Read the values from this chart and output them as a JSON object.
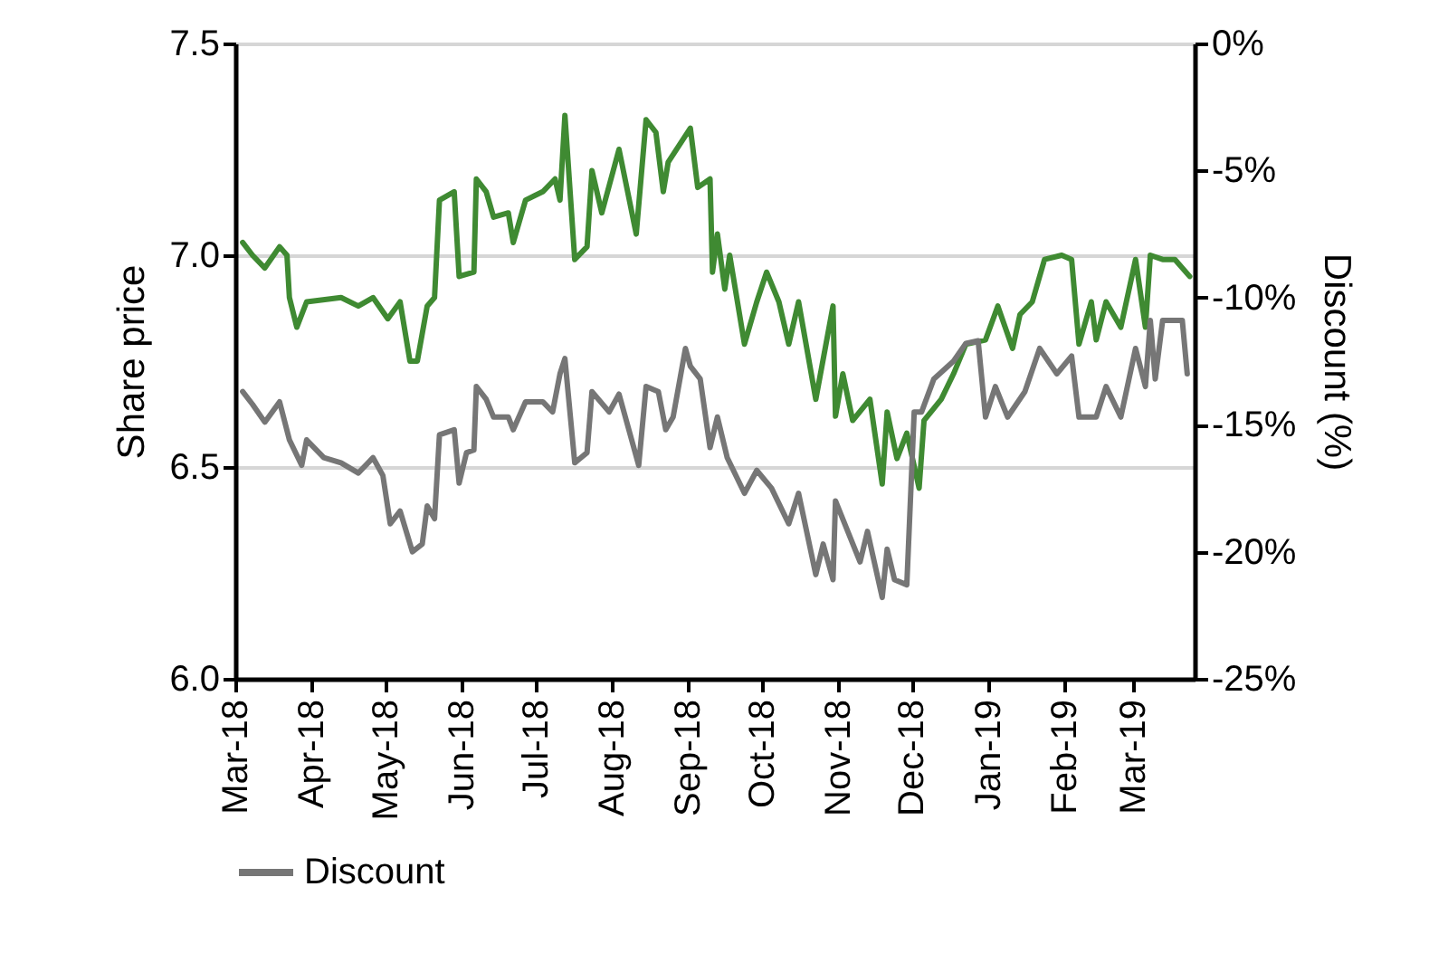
{
  "chart_data": {
    "type": "line",
    "ylabel": "Share price",
    "y2label": "Discount (%)",
    "xlim": [
      "2018-03-01",
      "2019-03-26"
    ],
    "xticks": [
      {
        "value": "2018-03-01",
        "label": "Mar-18"
      },
      {
        "value": "2018-04-01",
        "label": "Apr-18"
      },
      {
        "value": "2018-05-01",
        "label": "May-18"
      },
      {
        "value": "2018-06-01",
        "label": "Jun-18"
      },
      {
        "value": "2018-07-01",
        "label": "Jul-18"
      },
      {
        "value": "2018-08-01",
        "label": "Aug-18"
      },
      {
        "value": "2018-09-01",
        "label": "Sep-18"
      },
      {
        "value": "2018-10-01",
        "label": "Oct-18"
      },
      {
        "value": "2018-11-01",
        "label": "Nov-18"
      },
      {
        "value": "2018-12-01",
        "label": "Dec-18"
      },
      {
        "value": "2019-01-01",
        "label": "Jan-19"
      },
      {
        "value": "2019-02-01",
        "label": "Feb-19"
      },
      {
        "value": "2019-03-01",
        "label": "Mar-19"
      }
    ],
    "ylim": [
      6.0,
      7.5
    ],
    "yticks": [
      {
        "value": 6.0,
        "label": "6.0"
      },
      {
        "value": 6.5,
        "label": "6.5"
      },
      {
        "value": 7.0,
        "label": "7.0"
      },
      {
        "value": 7.5,
        "label": "7.5"
      }
    ],
    "y2lim": [
      -25,
      0
    ],
    "y2ticks": [
      {
        "value": -25,
        "label": "-25%"
      },
      {
        "value": -20,
        "label": "-20%"
      },
      {
        "value": -15,
        "label": "-15%"
      },
      {
        "value": -10,
        "label": "-10%"
      },
      {
        "value": -5,
        "label": "-5%"
      },
      {
        "value": 0,
        "label": "0%"
      }
    ],
    "grid": "y",
    "legend": "bottom",
    "series": [
      {
        "color": "#3f8a32",
        "x": [
          "2018-03-04",
          "2018-03-08",
          "2018-03-13",
          "2018-03-19",
          "2018-03-22",
          "2018-03-23",
          "2018-03-26",
          "2018-03-30",
          "2018-04-13",
          "2018-04-20",
          "2018-04-26",
          "2018-05-02",
          "2018-05-07",
          "2018-05-11",
          "2018-05-14",
          "2018-05-18",
          "2018-05-21",
          "2018-05-23",
          "2018-05-29",
          "2018-05-31",
          "2018-06-06",
          "2018-06-07",
          "2018-06-11",
          "2018-06-14",
          "2018-06-20",
          "2018-06-22",
          "2018-06-27",
          "2018-07-04",
          "2018-07-09",
          "2018-07-11",
          "2018-07-13",
          "2018-07-17",
          "2018-07-22",
          "2018-07-24",
          "2018-07-28",
          "2018-08-04",
          "2018-08-11",
          "2018-08-15",
          "2018-08-19",
          "2018-08-22",
          "2018-08-24",
          "2018-09-02",
          "2018-09-05",
          "2018-09-10",
          "2018-09-11",
          "2018-09-13",
          "2018-09-16",
          "2018-09-18",
          "2018-09-24",
          "2018-09-29",
          "2018-10-03",
          "2018-10-08",
          "2018-10-12",
          "2018-10-16",
          "2018-10-23",
          "2018-10-30",
          "2018-10-31",
          "2018-11-03",
          "2018-11-07",
          "2018-11-14",
          "2018-11-19",
          "2018-11-21",
          "2018-11-25",
          "2018-11-29",
          "2018-12-04",
          "2018-12-06",
          "2018-12-13",
          "2018-12-18",
          "2018-12-23",
          "2018-12-31",
          "2019-01-05",
          "2019-01-11",
          "2019-01-14",
          "2019-01-19",
          "2019-01-24",
          "2019-01-31",
          "2019-02-04",
          "2019-02-07",
          "2019-02-12",
          "2019-02-14",
          "2019-02-18",
          "2019-02-24",
          "2019-03-02",
          "2019-03-06",
          "2019-03-08",
          "2019-03-13",
          "2019-03-18",
          "2019-03-24"
        ],
        "values": [
          7.03,
          7.0,
          6.97,
          7.02,
          7.0,
          6.9,
          6.83,
          6.89,
          6.9,
          6.88,
          6.9,
          6.85,
          6.89,
          6.75,
          6.75,
          6.88,
          6.9,
          7.13,
          7.15,
          6.95,
          6.96,
          7.18,
          7.15,
          7.09,
          7.1,
          7.03,
          7.13,
          7.15,
          7.18,
          7.13,
          7.33,
          6.99,
          7.02,
          7.2,
          7.1,
          7.25,
          7.05,
          7.32,
          7.29,
          7.15,
          7.22,
          7.3,
          7.16,
          7.18,
          6.96,
          7.05,
          6.92,
          7.0,
          6.79,
          6.89,
          6.96,
          6.89,
          6.79,
          6.89,
          6.66,
          6.88,
          6.62,
          6.72,
          6.61,
          6.66,
          6.46,
          6.63,
          6.52,
          6.58,
          6.45,
          6.61,
          6.66,
          6.72,
          6.79,
          6.8,
          6.88,
          6.78,
          6.86,
          6.89,
          6.99,
          7.0,
          6.99,
          6.79,
          6.89,
          6.8,
          6.89,
          6.83,
          6.99,
          6.83,
          7.0,
          6.99,
          6.99,
          6.95
        ]
      },
      {
        "name": "Discount",
        "color": "#767676",
        "axis": "y2",
        "x": [
          "2018-03-04",
          "2018-03-08",
          "2018-03-13",
          "2018-03-19",
          "2018-03-23",
          "2018-03-28",
          "2018-03-30",
          "2018-04-06",
          "2018-04-13",
          "2018-04-20",
          "2018-04-26",
          "2018-04-30",
          "2018-05-03",
          "2018-05-07",
          "2018-05-12",
          "2018-05-16",
          "2018-05-18",
          "2018-05-21",
          "2018-05-23",
          "2018-05-29",
          "2018-05-31",
          "2018-06-03",
          "2018-06-06",
          "2018-06-07",
          "2018-06-11",
          "2018-06-14",
          "2018-06-20",
          "2018-06-22",
          "2018-06-27",
          "2018-07-04",
          "2018-07-08",
          "2018-07-11",
          "2018-07-13",
          "2018-07-17",
          "2018-07-22",
          "2018-07-24",
          "2018-07-31",
          "2018-08-04",
          "2018-08-12",
          "2018-08-15",
          "2018-08-20",
          "2018-08-23",
          "2018-08-26",
          "2018-08-31",
          "2018-09-02",
          "2018-09-06",
          "2018-09-10",
          "2018-09-13",
          "2018-09-17",
          "2018-09-24",
          "2018-09-29",
          "2018-10-05",
          "2018-10-12",
          "2018-10-16",
          "2018-10-23",
          "2018-10-26",
          "2018-10-30",
          "2018-10-31",
          "2018-11-05",
          "2018-11-10",
          "2018-11-13",
          "2018-11-19",
          "2018-11-21",
          "2018-11-24",
          "2018-11-29",
          "2018-12-02",
          "2018-12-05",
          "2018-12-10",
          "2018-12-18",
          "2018-12-23",
          "2018-12-28",
          "2018-12-31",
          "2019-01-04",
          "2019-01-09",
          "2019-01-16",
          "2019-01-22",
          "2019-01-29",
          "2019-02-04",
          "2019-02-07",
          "2019-02-14",
          "2019-02-18",
          "2019-02-24",
          "2019-03-02",
          "2019-03-06",
          "2019-03-08",
          "2019-03-10",
          "2019-03-13",
          "2019-03-21",
          "2019-03-23"
        ],
        "values": [
          -13.7,
          -14.2,
          -14.9,
          -14.1,
          -15.6,
          -16.6,
          -15.6,
          -16.3,
          -16.5,
          -16.9,
          -16.3,
          -17.0,
          -18.9,
          -18.4,
          -20.0,
          -19.7,
          -18.2,
          -18.7,
          -15.4,
          -15.2,
          -17.3,
          -16.1,
          -16.0,
          -13.5,
          -14.0,
          -14.7,
          -14.7,
          -15.2,
          -14.1,
          -14.1,
          -14.5,
          -13.0,
          -12.4,
          -16.5,
          -16.1,
          -13.7,
          -14.5,
          -13.8,
          -16.6,
          -13.5,
          -13.7,
          -15.2,
          -14.7,
          -12.0,
          -12.7,
          -13.2,
          -15.9,
          -14.7,
          -16.3,
          -17.7,
          -16.8,
          -17.5,
          -18.9,
          -17.7,
          -20.9,
          -19.7,
          -21.1,
          -18.0,
          -19.2,
          -20.4,
          -19.2,
          -21.8,
          -19.9,
          -21.1,
          -21.3,
          -14.5,
          -14.5,
          -13.2,
          -12.5,
          -11.8,
          -11.7,
          -14.7,
          -13.5,
          -14.7,
          -13.7,
          -12.0,
          -13.0,
          -12.3,
          -14.7,
          -14.7,
          -13.5,
          -14.7,
          -12.0,
          -13.5,
          -10.9,
          -13.2,
          -10.9,
          -10.9,
          -13.0
        ]
      }
    ]
  }
}
